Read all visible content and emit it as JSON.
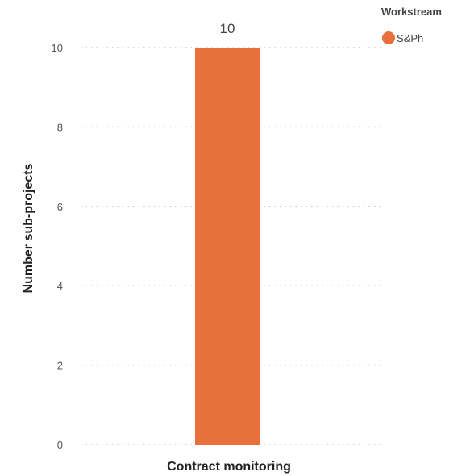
{
  "chart_data": {
    "type": "bar",
    "categories": [
      "Contract monitoring"
    ],
    "series": [
      {
        "name": "S&Ph",
        "values": [
          10
        ],
        "color": "#E8703A"
      }
    ],
    "ylabel": "Number sub-projects",
    "xlabel": "",
    "ylim": [
      0,
      10
    ],
    "yticks": [
      0,
      2,
      4,
      6,
      8,
      10
    ],
    "grid": true,
    "data_labels": true,
    "legend": {
      "title": "Workstream",
      "position": "top-right"
    }
  }
}
